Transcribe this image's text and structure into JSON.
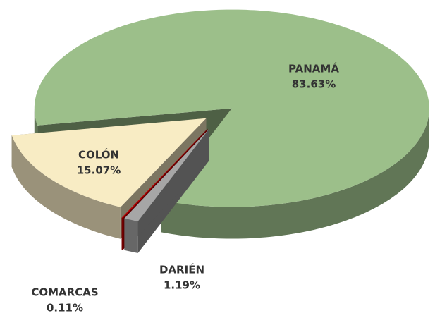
{
  "chart_data": {
    "type": "pie3d",
    "categories": [
      "PANAMÁ",
      "DARIÉN",
      "COMARCAS",
      "COLÓN"
    ],
    "values": [
      83.63,
      1.19,
      0.11,
      15.07
    ],
    "value_labels": [
      "83.63%",
      "1.19%",
      "0.11%",
      "15.07%"
    ],
    "colors": [
      "#9cbf8a",
      "#a6a6a6",
      "#c00000",
      "#f8ecc4"
    ]
  }
}
